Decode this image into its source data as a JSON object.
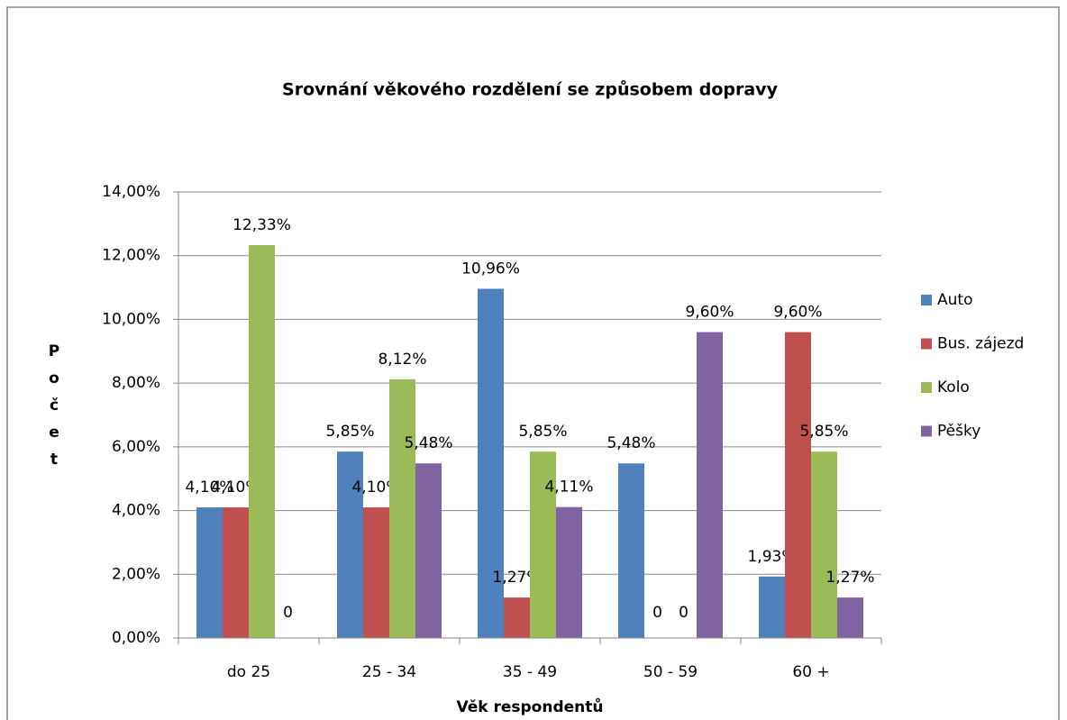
{
  "chart_data": {
    "type": "bar",
    "title": "Srovnání  věkového rozdělení se způsobem dopravy",
    "x_label": "Věk respondentů",
    "y_label": "Počet",
    "categories": [
      "do 25",
      "25 - 34",
      "35 - 49",
      "50 - 59",
      "60 +"
    ],
    "series": [
      {
        "name": "Auto",
        "color": "#4f81bd",
        "values": [
          4.1,
          5.85,
          10.96,
          5.48,
          1.93
        ],
        "value_labels": [
          "4,10%",
          "5,85%",
          "10,96%",
          "5,48%",
          "1,93%"
        ]
      },
      {
        "name": "Bus. zájezd",
        "color": "#c0504d",
        "values": [
          4.1,
          4.1,
          1.27,
          0,
          9.6
        ],
        "value_labels": [
          "4,10%",
          "4,10%",
          "1,27%",
          "0",
          "9,60%"
        ]
      },
      {
        "name": "Kolo",
        "color": "#9bbb59",
        "values": [
          12.33,
          8.12,
          5.85,
          0,
          5.85
        ],
        "value_labels": [
          "12,33%",
          "8,12%",
          "5,85%",
          "0",
          "5,85%"
        ]
      },
      {
        "name": "Pěšky",
        "color": "#8064a2",
        "values": [
          0,
          5.48,
          4.11,
          9.6,
          1.27
        ],
        "value_labels": [
          "0",
          "5,48%",
          "4,11%",
          "9,60%",
          "1,27%"
        ]
      }
    ],
    "ylim": [
      0,
      14
    ],
    "yticks": [
      {
        "value": 0,
        "label": "0,00%"
      },
      {
        "value": 2,
        "label": "2,00%"
      },
      {
        "value": 4,
        "label": "4,00%"
      },
      {
        "value": 6,
        "label": "6,00%"
      },
      {
        "value": 8,
        "label": "8,00%"
      },
      {
        "value": 10,
        "label": "10,00%"
      },
      {
        "value": 12,
        "label": "12,00%"
      },
      {
        "value": 14,
        "label": "14,00%"
      }
    ],
    "grid": true,
    "legend": "right"
  }
}
